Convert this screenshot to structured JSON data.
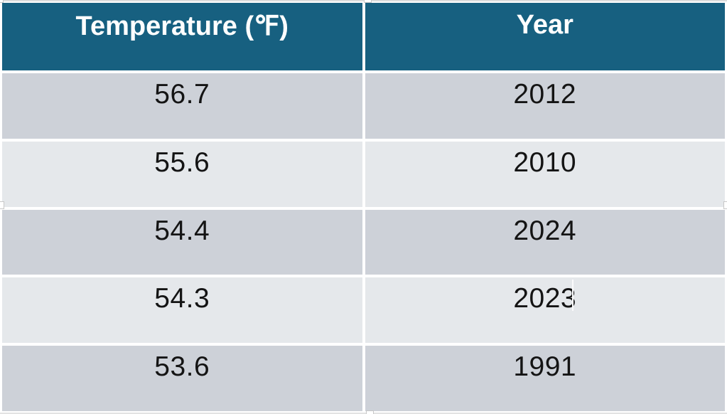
{
  "chart_data": {
    "type": "table",
    "title": "",
    "columns": [
      "Temperature (℉)",
      "Year"
    ],
    "rows": [
      [
        "56.7",
        "2012"
      ],
      [
        "55.6",
        "2010"
      ],
      [
        "54.4",
        "2024"
      ],
      [
        "54.3",
        "2023"
      ],
      [
        "53.6",
        "1991"
      ]
    ]
  },
  "table": {
    "header": {
      "temperature": "Temperature (℉)",
      "year": "Year"
    },
    "rows": [
      {
        "temperature": "56.7",
        "year": "2012"
      },
      {
        "temperature": "55.6",
        "year": "2010"
      },
      {
        "temperature": "54.4",
        "year": "2024"
      },
      {
        "temperature": "54.3",
        "year": "2023"
      },
      {
        "temperature": "53.6",
        "year": "1991"
      }
    ]
  },
  "colors": {
    "header_bg": "#176080",
    "header_text": "#FFFFFF",
    "row_dark": "#CDD1D8",
    "row_light": "#E5E8EB",
    "cell_text": "#141414",
    "divider": "#FFFFFF"
  }
}
